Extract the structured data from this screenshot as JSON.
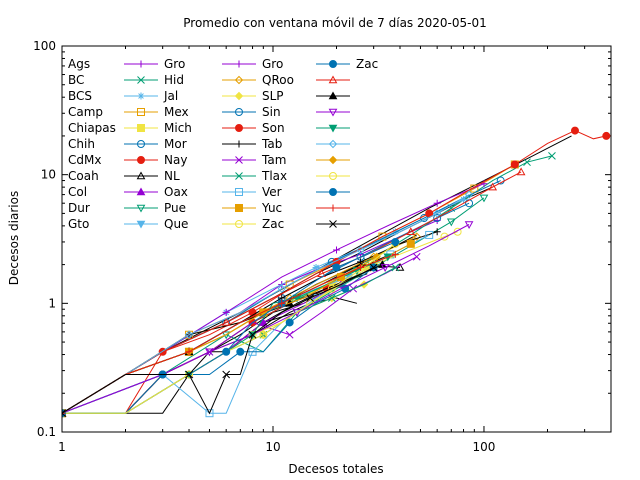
{
  "chart_data": {
    "type": "line",
    "title": "Promedio con ventana móvil de 7 días 2020-05-01",
    "xlabel": "Decesos totales",
    "ylabel": "Decesos diarios",
    "xscale": "log",
    "yscale": "log",
    "xlim": [
      1,
      400
    ],
    "ylim": [
      0.1,
      100
    ],
    "xticks": [
      {
        "v": 1,
        "label": "1"
      },
      {
        "v": 10,
        "label": "10"
      },
      {
        "v": 100,
        "label": "100"
      }
    ],
    "yticks": [
      {
        "v": 0.1,
        "label": "0.1"
      },
      {
        "v": 1,
        "label": "1"
      },
      {
        "v": 10,
        "label": "10"
      },
      {
        "v": 100,
        "label": "100"
      }
    ],
    "legend_position": "top-left",
    "series": [
      {
        "name": "Ags",
        "color": "#000000",
        "marker": "none",
        "x": [
          1,
          2,
          3,
          5,
          8,
          12,
          15,
          20,
          25
        ],
        "y": [
          0.14,
          0.14,
          0.28,
          0.42,
          0.57,
          0.85,
          1.0,
          1.1,
          1.0
        ]
      },
      {
        "name": "BC",
        "color": "#000000",
        "marker": "none",
        "x": [
          1,
          3,
          6,
          10,
          16,
          25,
          40,
          60,
          80,
          110
        ],
        "y": [
          0.14,
          0.42,
          0.71,
          1.1,
          1.7,
          2.4,
          3.6,
          5.0,
          6.4,
          8.0
        ]
      },
      {
        "name": "BCS",
        "color": "#000000",
        "marker": "none",
        "x": [
          1,
          2,
          3,
          4,
          5,
          6
        ],
        "y": [
          0.14,
          0.14,
          0.28,
          0.28,
          0.42,
          0.42
        ]
      },
      {
        "name": "Camp",
        "color": "#000000",
        "marker": "none",
        "x": [
          1,
          2,
          4,
          6,
          9,
          13,
          18,
          24
        ],
        "y": [
          0.14,
          0.28,
          0.28,
          0.42,
          0.71,
          1.0,
          1.3,
          1.6
        ]
      },
      {
        "name": "Chiapas",
        "color": "#000000",
        "marker": "none",
        "x": [
          1,
          3,
          5,
          7,
          10,
          14,
          19,
          26
        ],
        "y": [
          0.14,
          0.28,
          0.42,
          0.57,
          0.85,
          1.0,
          1.3,
          1.7
        ]
      },
      {
        "name": "Chih",
        "color": "#000000",
        "marker": "none",
        "x": [
          1,
          2,
          4,
          7,
          11,
          16,
          24,
          35,
          48
        ],
        "y": [
          0.14,
          0.28,
          0.42,
          0.71,
          1.0,
          1.4,
          1.9,
          2.6,
          3.4
        ]
      },
      {
        "name": "CdMx",
        "color": "#000000",
        "marker": "none",
        "x": [
          1,
          3,
          7,
          14,
          28,
          55,
          100,
          170,
          260
        ],
        "y": [
          0.14,
          0.42,
          0.85,
          1.6,
          3.0,
          5.5,
          9.0,
          14,
          20
        ]
      },
      {
        "name": "Coah",
        "color": "#000000",
        "marker": "none",
        "x": [
          1,
          2,
          3,
          5,
          8,
          12,
          18,
          26,
          36
        ],
        "y": [
          0.14,
          0.14,
          0.28,
          0.42,
          0.71,
          1.0,
          1.4,
          1.9,
          2.4
        ]
      },
      {
        "name": "Col",
        "color": "#000000",
        "marker": "none",
        "x": [
          1,
          2,
          3,
          4,
          5
        ],
        "y": [
          0.14,
          0.14,
          0.14,
          0.28,
          0.28
        ]
      },
      {
        "name": "Dur",
        "color": "#000000",
        "marker": "none",
        "x": [
          1,
          2,
          4,
          6,
          9,
          13
        ],
        "y": [
          0.14,
          0.14,
          0.28,
          0.42,
          0.71,
          0.85
        ]
      },
      {
        "name": "Gto",
        "color": "#000000",
        "marker": "none",
        "x": [
          1,
          2,
          4,
          6,
          9,
          14,
          20,
          28
        ],
        "y": [
          0.14,
          0.28,
          0.42,
          0.57,
          0.85,
          1.1,
          1.4,
          1.7
        ]
      },
      {
        "name": "Gro",
        "color": "#9400D3",
        "marker": "plus",
        "x": [
          1,
          2,
          4,
          7,
          11,
          17,
          26,
          40,
          60
        ],
        "y": [
          0.14,
          0.28,
          0.57,
          0.85,
          1.4,
          1.9,
          2.4,
          3.3,
          4.4
        ]
      },
      {
        "name": "Hid",
        "color": "#009E73",
        "marker": "x",
        "x": [
          1,
          3,
          5,
          8,
          12,
          18,
          28,
          45,
          70,
          110,
          160,
          210
        ],
        "y": [
          0.14,
          0.28,
          0.42,
          0.71,
          1.0,
          1.4,
          2.1,
          3.4,
          5.5,
          9.0,
          12.5,
          14
        ]
      },
      {
        "name": "Jal",
        "color": "#56B4E9",
        "marker": "star",
        "x": [
          1,
          3,
          6,
          10,
          16,
          25,
          38,
          55,
          80
        ],
        "y": [
          0.14,
          0.42,
          0.85,
          1.3,
          1.9,
          2.6,
          3.6,
          4.8,
          6.4
        ]
      },
      {
        "name": "Mex",
        "color": "#E69F00",
        "marker": "square",
        "x": [
          1,
          2,
          4,
          7,
          12,
          20,
          33,
          55,
          90,
          140
        ],
        "y": [
          0.14,
          0.28,
          0.57,
          0.85,
          1.4,
          2.1,
          3.3,
          5.0,
          7.8,
          12
        ]
      },
      {
        "name": "Mich",
        "color": "#F0E442",
        "marker": "filled-square",
        "x": [
          1,
          2,
          4,
          6,
          9,
          13,
          19,
          28
        ],
        "y": [
          0.14,
          0.28,
          0.42,
          0.57,
          0.85,
          1.1,
          1.4,
          1.9
        ]
      },
      {
        "name": "Mor",
        "color": "#0072B2",
        "marker": "circle",
        "x": [
          1,
          2,
          4,
          7,
          11,
          17,
          26,
          40,
          60,
          85
        ],
        "y": [
          0.14,
          0.28,
          0.42,
          0.71,
          1.1,
          1.6,
          2.3,
          3.3,
          4.6,
          6.0
        ]
      },
      {
        "name": "Nay",
        "color": "#E51E10",
        "marker": "filled-circle",
        "x": [
          1,
          2,
          3,
          5,
          8,
          12,
          18
        ],
        "y": [
          0.14,
          0.14,
          0.28,
          0.42,
          0.71,
          1.0,
          1.3
        ]
      },
      {
        "name": "NL",
        "color": "#000000",
        "marker": "triangle",
        "x": [
          1,
          2,
          4,
          7,
          11,
          17,
          26,
          40
        ],
        "y": [
          0.14,
          0.28,
          0.42,
          0.71,
          1.0,
          1.4,
          2.0,
          1.9
        ]
      },
      {
        "name": "Oax",
        "color": "#9400D3",
        "marker": "filled-triangle",
        "x": [
          1,
          2,
          4,
          6,
          9,
          14,
          21,
          30
        ],
        "y": [
          0.14,
          0.14,
          0.28,
          0.42,
          0.71,
          1.0,
          1.4,
          1.9
        ]
      },
      {
        "name": "Pue",
        "color": "#009E73",
        "marker": "inv-triangle",
        "x": [
          1,
          3,
          6,
          9,
          13,
          20,
          30,
          45,
          70,
          100
        ],
        "y": [
          0.14,
          0.28,
          0.57,
          0.42,
          0.85,
          1.3,
          1.9,
          2.8,
          4.3,
          6.6
        ]
      },
      {
        "name": "Que",
        "color": "#56B4E9",
        "marker": "filled-inv-triangle",
        "x": [
          1,
          2,
          4,
          7,
          11,
          16,
          23
        ],
        "y": [
          0.14,
          0.28,
          0.42,
          0.71,
          1.0,
          1.3,
          1.6
        ]
      },
      {
        "name": "Gro",
        "color": "#9400D3",
        "marker": "plus",
        "x": [
          1,
          3,
          6,
          11,
          20,
          36,
          60,
          100
        ],
        "y": [
          0.14,
          0.42,
          0.85,
          1.6,
          2.6,
          4.1,
          6.0,
          8.5
        ]
      },
      {
        "name": "QRoo",
        "color": "#E69F00",
        "marker": "diamond",
        "x": [
          1,
          2,
          4,
          7,
          12,
          19,
          30,
          48
        ],
        "y": [
          0.14,
          0.28,
          0.57,
          0.71,
          1.1,
          1.6,
          2.3,
          3.3
        ]
      },
      {
        "name": "SLP",
        "color": "#F0E442",
        "marker": "filled-diamond",
        "x": [
          1,
          2,
          4,
          6,
          9,
          13,
          19,
          27
        ],
        "y": [
          0.14,
          0.14,
          0.28,
          0.42,
          0.57,
          0.85,
          1.1,
          1.4
        ]
      },
      {
        "name": "Sin",
        "color": "#0072B2",
        "marker": "circle",
        "x": [
          1,
          3,
          6,
          11,
          19,
          32,
          52,
          80,
          120
        ],
        "y": [
          0.14,
          0.42,
          0.71,
          1.3,
          2.1,
          3.1,
          4.6,
          6.6,
          9.0
        ]
      },
      {
        "name": "Son",
        "color": "#E51E10",
        "marker": "filled-circle",
        "x": [
          1,
          2,
          3,
          5,
          8,
          13,
          20,
          33,
          55,
          90,
          140,
          200,
          270,
          330,
          380
        ],
        "y": [
          0.14,
          0.14,
          0.42,
          0.57,
          0.85,
          1.4,
          2.1,
          3.3,
          5.0,
          8.0,
          12,
          17.5,
          22,
          19,
          20
        ]
      },
      {
        "name": "Tab",
        "color": "#000000",
        "marker": "plus",
        "x": [
          1,
          2,
          4,
          7,
          11,
          17,
          26,
          40,
          60
        ],
        "y": [
          0.14,
          0.28,
          0.57,
          0.71,
          1.1,
          1.6,
          2.1,
          2.9,
          3.6
        ]
      },
      {
        "name": "Tam",
        "color": "#9400D3",
        "marker": "x",
        "x": [
          1,
          3,
          5,
          8,
          12,
          17,
          24,
          34,
          48
        ],
        "y": [
          0.14,
          0.28,
          0.42,
          0.71,
          0.57,
          0.85,
          1.3,
          1.7,
          2.3
        ]
      },
      {
        "name": "Tlax",
        "color": "#009E73",
        "marker": "x",
        "x": [
          1,
          2,
          4,
          6,
          9,
          13,
          19,
          27,
          38
        ],
        "y": [
          0.14,
          0.14,
          0.28,
          0.42,
          0.57,
          0.85,
          1.1,
          1.4,
          1.9
        ]
      },
      {
        "name": "Ver",
        "color": "#56B4E9",
        "marker": "square",
        "x": [
          1,
          3,
          5,
          6,
          8,
          11,
          16,
          24,
          36,
          55
        ],
        "y": [
          0.14,
          0.28,
          0.14,
          0.14,
          0.42,
          0.71,
          1.1,
          1.6,
          2.4,
          3.4
        ]
      },
      {
        "name": "Yuc",
        "color": "#E69F00",
        "marker": "filled-square",
        "x": [
          1,
          2,
          4,
          6,
          9,
          14,
          21,
          31,
          45
        ],
        "y": [
          0.14,
          0.28,
          0.42,
          0.57,
          0.85,
          1.1,
          1.6,
          2.1,
          2.9
        ]
      },
      {
        "name": "Zac",
        "color": "#F0E442",
        "marker": "circle",
        "x": [
          1,
          2,
          4,
          6,
          8,
          11,
          15,
          21,
          30,
          45,
          65,
          75
        ],
        "y": [
          0.14,
          0.14,
          0.28,
          0.42,
          0.57,
          0.71,
          1.0,
          1.4,
          2.0,
          2.6,
          3.3,
          3.6
        ]
      },
      {
        "name": "Zac",
        "color": "#0072B2",
        "marker": "filled-circle",
        "x": [
          1,
          2,
          3,
          5,
          7,
          9,
          12,
          16,
          22,
          30
        ],
        "y": [
          0.14,
          0.14,
          0.28,
          0.28,
          0.42,
          0.42,
          0.71,
          1.0,
          1.3,
          1.9
        ]
      },
      {
        "name": "",
        "color": "#E51E10",
        "marker": "triangle",
        "x": [
          1,
          3,
          6,
          10,
          17,
          28,
          45,
          70,
          110,
          150
        ],
        "y": [
          0.14,
          0.42,
          0.71,
          1.1,
          1.7,
          2.4,
          3.6,
          5.3,
          8.0,
          10.5
        ]
      },
      {
        "name": "",
        "color": "#000000",
        "marker": "filled-triangle",
        "x": [
          1,
          2,
          4,
          7,
          12,
          20,
          33
        ],
        "y": [
          0.14,
          0.28,
          0.42,
          0.71,
          1.0,
          1.4,
          2.0
        ]
      },
      {
        "name": "",
        "color": "#9400D3",
        "marker": "inv-triangle",
        "x": [
          1,
          3,
          5,
          8,
          13,
          21,
          34,
          55,
          85
        ],
        "y": [
          0.14,
          0.28,
          0.42,
          0.57,
          0.85,
          1.3,
          1.9,
          2.8,
          4.1
        ]
      },
      {
        "name": "",
        "color": "#009E73",
        "marker": "filled-inv-triangle",
        "x": [
          1,
          2,
          4,
          6,
          8,
          10,
          13,
          18,
          25,
          35
        ],
        "y": [
          0.14,
          0.14,
          0.28,
          0.42,
          0.57,
          1.0,
          1.1,
          1.4,
          1.8,
          2.3
        ]
      },
      {
        "name": "",
        "color": "#56B4E9",
        "marker": "diamond",
        "x": [
          1,
          2,
          4,
          7,
          11,
          17,
          26,
          40,
          60,
          85
        ],
        "y": [
          0.14,
          0.28,
          0.57,
          0.85,
          1.3,
          1.9,
          2.6,
          3.6,
          5.0,
          7.0
        ]
      },
      {
        "name": "",
        "color": "#E69F00",
        "marker": "filled-diamond",
        "x": [
          1,
          2,
          4,
          6,
          9,
          14,
          21,
          31
        ],
        "y": [
          0.14,
          0.28,
          0.42,
          0.57,
          0.85,
          1.1,
          1.6,
          2.3
        ]
      },
      {
        "name": "",
        "color": "#F0E442",
        "marker": "circle",
        "x": [
          1,
          2,
          4,
          6,
          9,
          13,
          19,
          27,
          38
        ],
        "y": [
          0.14,
          0.14,
          0.28,
          0.42,
          0.57,
          0.85,
          1.3,
          1.9,
          2.9
        ]
      },
      {
        "name": "",
        "color": "#0072B2",
        "marker": "filled-circle",
        "x": [
          1,
          2,
          3,
          4,
          6,
          8,
          11,
          15,
          20,
          28,
          38
        ],
        "y": [
          0.14,
          0.28,
          0.28,
          0.28,
          0.42,
          0.71,
          1.0,
          1.4,
          1.9,
          2.4,
          3.0
        ]
      },
      {
        "name": "",
        "color": "#E51E10",
        "marker": "plus",
        "x": [
          1,
          2,
          4,
          7,
          11,
          17,
          26,
          38
        ],
        "y": [
          0.14,
          0.28,
          0.42,
          0.71,
          1.0,
          1.4,
          1.9,
          2.4
        ]
      },
      {
        "name": "",
        "color": "#000000",
        "marker": "x",
        "x": [
          1,
          2,
          4,
          5,
          6,
          7,
          8,
          11,
          15,
          21,
          30
        ],
        "y": [
          0.14,
          0.28,
          0.28,
          0.14,
          0.28,
          0.28,
          0.57,
          0.85,
          1.1,
          1.4,
          1.9
        ]
      }
    ]
  }
}
